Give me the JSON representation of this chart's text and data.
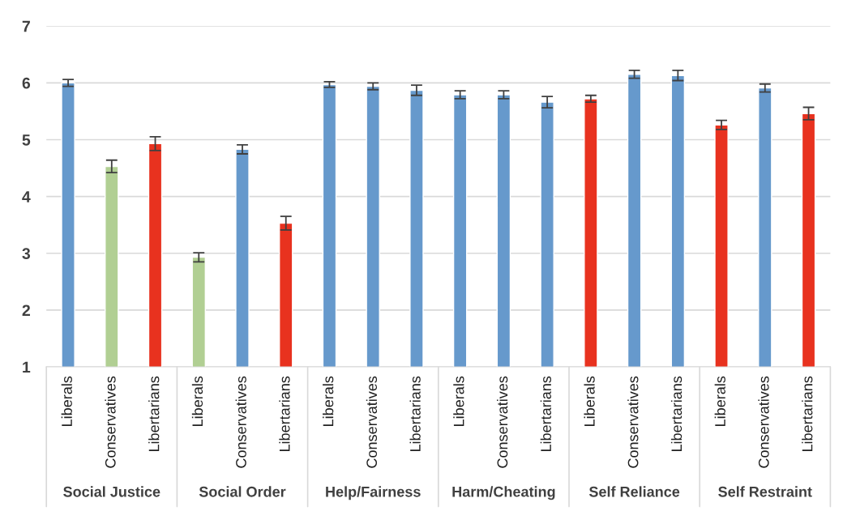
{
  "chart_data": {
    "type": "bar",
    "categories": [
      "Liberals",
      "Conservatives",
      "Libertarians",
      "Liberals",
      "Conservatives",
      "Libertarians",
      "Liberals",
      "Conservatives",
      "Libertarians",
      "Liberals",
      "Conservatives",
      "Libertarians",
      "Liberals",
      "Conservatives",
      "Libertarians",
      "Liberals",
      "Conservatives",
      "Libertarians"
    ],
    "values": [
      6.0,
      4.53,
      4.93,
      2.93,
      4.83,
      3.53,
      5.97,
      5.94,
      5.87,
      5.79,
      5.79,
      5.66,
      5.72,
      6.15,
      6.13,
      5.26,
      5.91,
      5.46
    ],
    "errors": [
      0.06,
      0.11,
      0.12,
      0.08,
      0.08,
      0.12,
      0.05,
      0.06,
      0.09,
      0.07,
      0.07,
      0.1,
      0.06,
      0.07,
      0.09,
      0.08,
      0.07,
      0.11
    ],
    "colors": [
      "#6699cc",
      "#b1cf93",
      "#e8321f",
      "#b1cf93",
      "#6699cc",
      "#e8321f",
      "#6699cc",
      "#6699cc",
      "#6699cc",
      "#6699cc",
      "#6699cc",
      "#6699cc",
      "#e8321f",
      "#6699cc",
      "#6699cc",
      "#e8321f",
      "#6699cc",
      "#e8321f"
    ],
    "annotations": [
      "Social Justice",
      "Social Order",
      "Help/Fairness",
      "Harm/Cheating",
      "Self Reliance",
      "Self Restraint"
    ],
    "ylim": [
      1,
      7
    ],
    "yticks": [
      1,
      2,
      3,
      4,
      5,
      6,
      7
    ],
    "grid": "y"
  }
}
